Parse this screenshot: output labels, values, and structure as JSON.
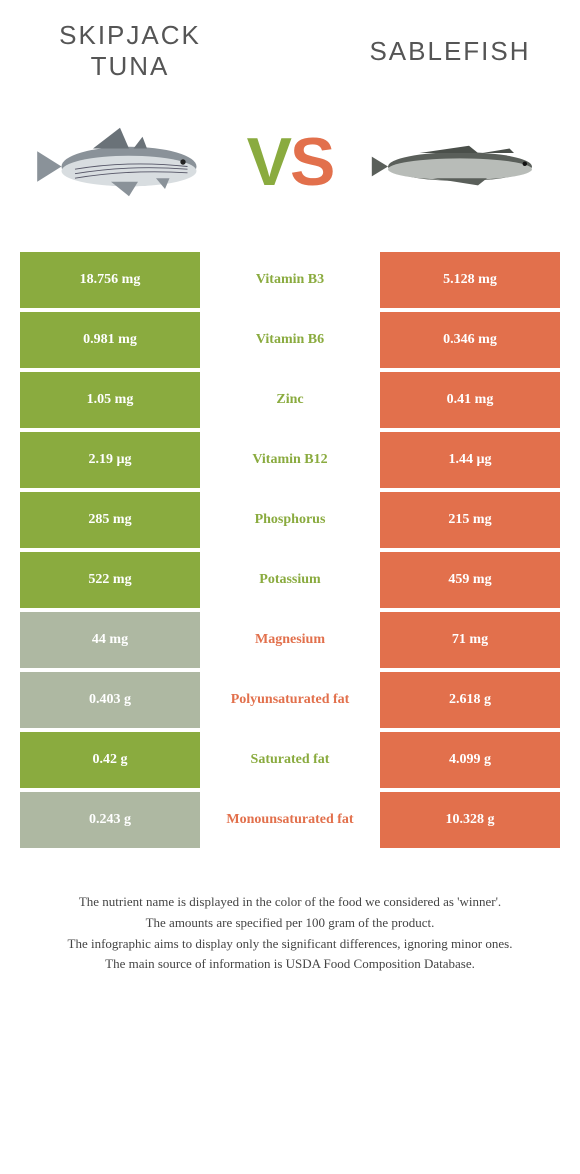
{
  "titles": {
    "left": "SKIPJACK TUNA",
    "right": "SABLEFISH"
  },
  "vs": {
    "v": "V",
    "s": "S"
  },
  "colors": {
    "green": "#8aab3f",
    "gray": "#aeb8a2",
    "orange": "#e2704c",
    "text": "#555"
  },
  "rows": [
    {
      "left": "18.756 mg",
      "label": "Vitamin B3",
      "right": "5.128 mg",
      "winner": "left"
    },
    {
      "left": "0.981 mg",
      "label": "Vitamin B6",
      "right": "0.346 mg",
      "winner": "left"
    },
    {
      "left": "1.05 mg",
      "label": "Zinc",
      "right": "0.41 mg",
      "winner": "left"
    },
    {
      "left": "2.19 µg",
      "label": "Vitamin B12",
      "right": "1.44 µg",
      "winner": "left"
    },
    {
      "left": "285 mg",
      "label": "Phosphorus",
      "right": "215 mg",
      "winner": "left"
    },
    {
      "left": "522 mg",
      "label": "Potassium",
      "right": "459 mg",
      "winner": "left"
    },
    {
      "left": "44 mg",
      "label": "Magnesium",
      "right": "71 mg",
      "winner": "right"
    },
    {
      "left": "0.403 g",
      "label": "Polyunsaturated fat",
      "right": "2.618 g",
      "winner": "right"
    },
    {
      "left": "0.42 g",
      "label": "Saturated fat",
      "right": "4.099 g",
      "winner": "left"
    },
    {
      "left": "0.243 g",
      "label": "Monounsaturated fat",
      "right": "10.328 g",
      "winner": "right"
    }
  ],
  "footer": [
    "The nutrient name is displayed in the color of the food we considered as 'winner'.",
    "The amounts are specified per 100 gram of the product.",
    "The infographic aims to display only the significant differences, ignoring minor ones.",
    "The main source of information is USDA Food Composition Database."
  ]
}
